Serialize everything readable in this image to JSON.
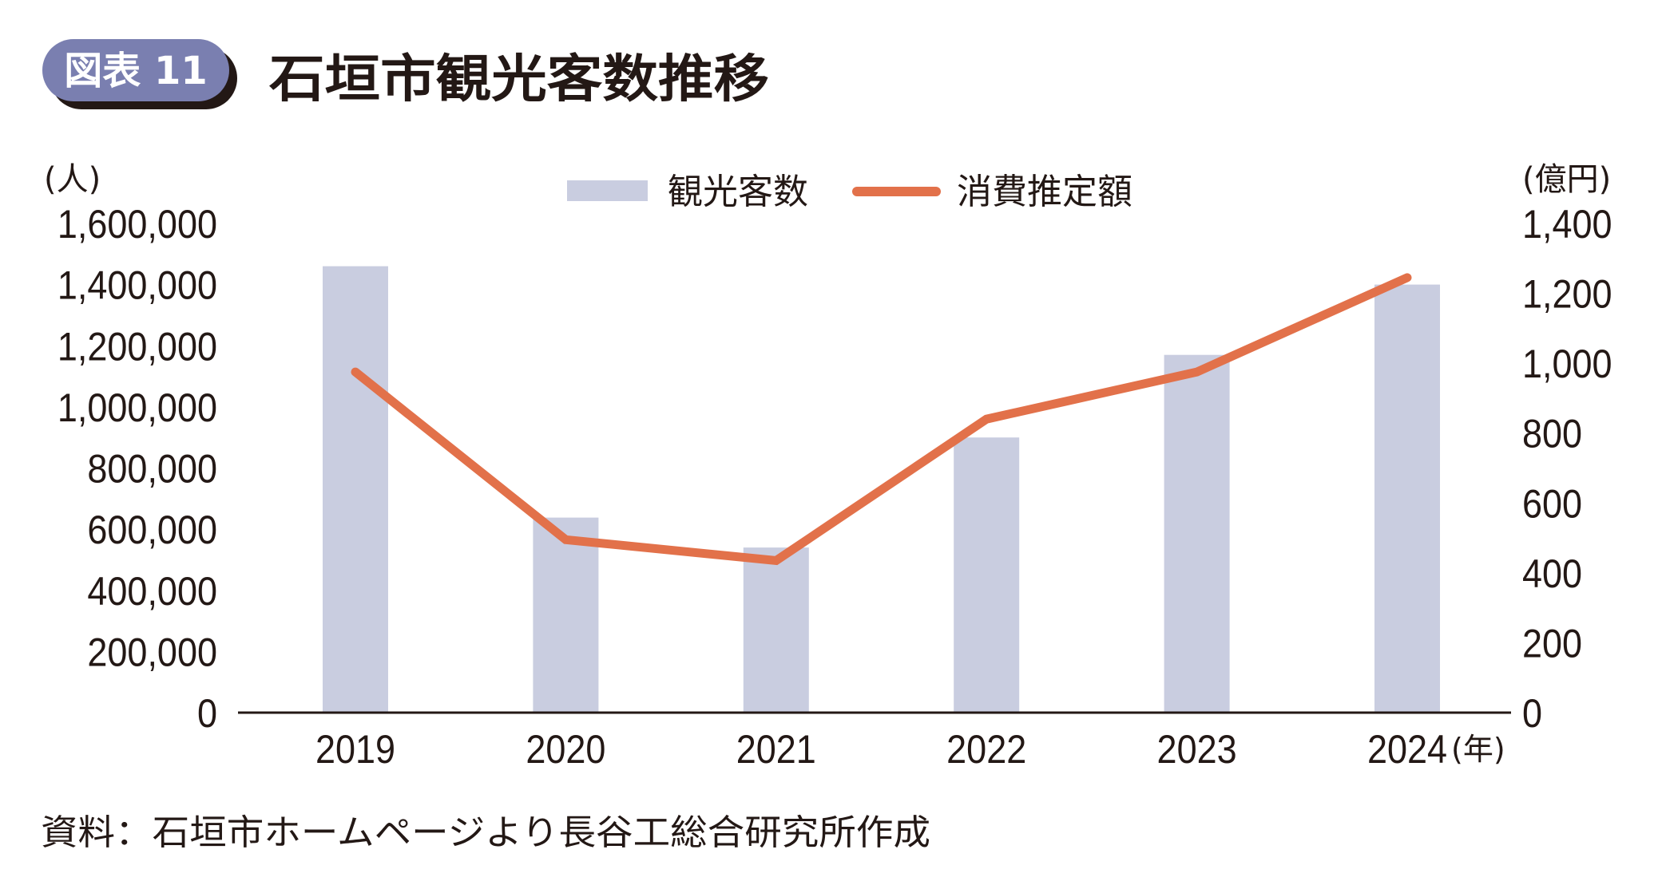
{
  "header": {
    "badge": "図表 11",
    "title": "石垣市観光客数推移"
  },
  "colors": {
    "badge_fill": "#7a7fb0",
    "badge_shadow": "#231815",
    "bar": "#c9cde0",
    "line": "#e2714a",
    "text": "#231815",
    "axis": "#231815"
  },
  "chart_data": {
    "type": "bar+line",
    "title": "石垣市観光客数推移",
    "categories": [
      "2019",
      "2020",
      "2021",
      "2022",
      "2023",
      "2024"
    ],
    "x_unit": "(年)",
    "series": [
      {
        "name": "観光客数",
        "type": "bar",
        "axis": "left",
        "values": [
          1460000,
          638000,
          540000,
          900000,
          1170000,
          1400000
        ]
      },
      {
        "name": "消費推定額",
        "type": "line",
        "axis": "right",
        "values": [
          975,
          495,
          435,
          840,
          975,
          1245
        ]
      }
    ],
    "left_axis": {
      "unit": "(人)",
      "ylim": [
        0,
        1600000
      ],
      "ticks": [
        "0",
        "200,000",
        "400,000",
        "600,000",
        "800,000",
        "1,000,000",
        "1,200,000",
        "1,400,000",
        "1,600,000"
      ],
      "tick_values": [
        0,
        200000,
        400000,
        600000,
        800000,
        1000000,
        1200000,
        1400000,
        1600000
      ]
    },
    "right_axis": {
      "unit": "(億円)",
      "ylim": [
        0,
        1400
      ],
      "ticks": [
        "0",
        "200",
        "400",
        "600",
        "800",
        "1,000",
        "1,200",
        "1,400"
      ],
      "tick_values": [
        0,
        200,
        400,
        600,
        800,
        1000,
        1200,
        1400
      ]
    },
    "grid": false,
    "legend_position": "top-center"
  },
  "legend": {
    "bar_label": "観光客数",
    "line_label": "消費推定額"
  },
  "source": "資料：石垣市ホームページより長谷工総合研究所作成"
}
